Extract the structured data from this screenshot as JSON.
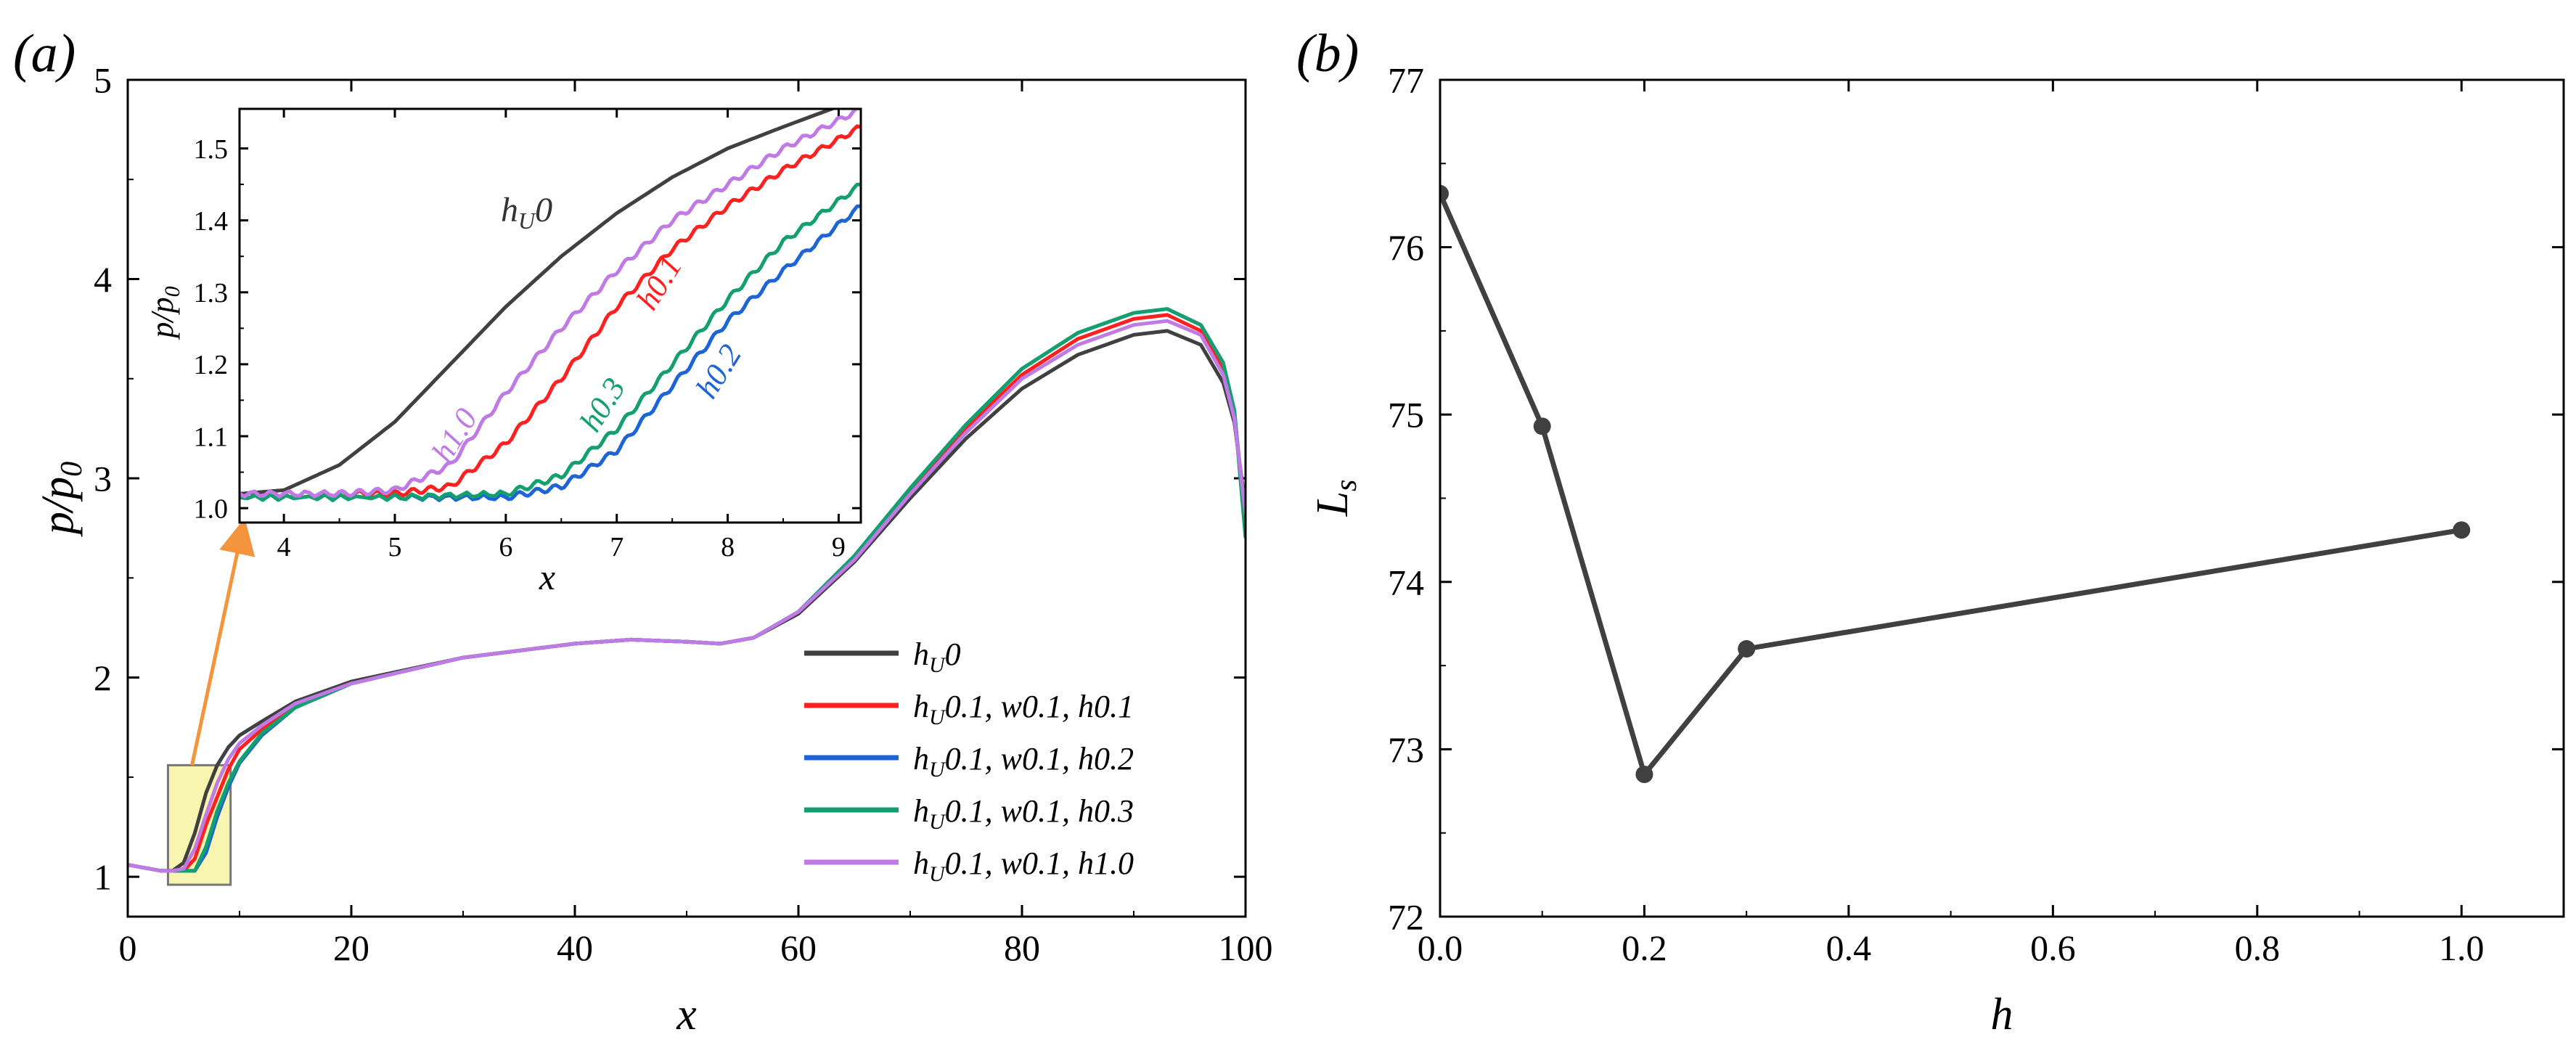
{
  "panel_a_label": "(a)",
  "panel_b_label": "(b)",
  "colors": {
    "series": [
      "#404040",
      "#ff2020",
      "#1c64d8",
      "#14a06e",
      "#c07ae6"
    ],
    "box_fill": "#f7f5b0",
    "arrow": "#f4943c",
    "axis": "#000000"
  },
  "chart_data": [
    {
      "id": "a",
      "type": "line",
      "xlabel": "x",
      "ylabel": "p/p0",
      "xlim": [
        0,
        100
      ],
      "ylim": [
        0.8,
        5.0
      ],
      "xticks": [
        "0",
        "20",
        "40",
        "60",
        "80",
        "100"
      ],
      "yticks": [
        "1",
        "2",
        "3",
        "4",
        "5"
      ],
      "legend": {
        "position": "lower-right",
        "entries": [
          "hU0",
          "hU0.1, w0.1, h0.1",
          "hU0.1, w0.1, h0.2",
          "hU0.1, w0.1, h0.3",
          "hU0.1, w0.1, h1.0"
        ]
      },
      "series": [
        {
          "name": "hU0",
          "x": [
            0,
            3,
            4,
            5,
            6,
            7,
            8,
            9,
            10,
            12,
            15,
            20,
            30,
            40,
            45,
            50,
            53,
            56,
            60,
            65,
            70,
            75,
            80,
            85,
            90,
            93,
            96,
            98,
            99,
            100
          ],
          "y": [
            1.06,
            1.03,
            1.03,
            1.07,
            1.22,
            1.42,
            1.56,
            1.65,
            1.71,
            1.78,
            1.88,
            1.98,
            2.1,
            2.17,
            2.19,
            2.18,
            2.17,
            2.2,
            2.32,
            2.58,
            2.9,
            3.2,
            3.45,
            3.62,
            3.72,
            3.74,
            3.67,
            3.48,
            3.28,
            2.85
          ]
        },
        {
          "name": "hU0.1, w0.1, h0.1",
          "x": [
            0,
            3,
            4,
            5,
            6,
            7,
            8,
            9,
            10,
            12,
            15,
            20,
            30,
            40,
            45,
            50,
            53,
            56,
            60,
            65,
            70,
            75,
            80,
            85,
            90,
            93,
            96,
            98,
            99,
            100
          ],
          "y": [
            1.06,
            1.03,
            1.03,
            1.03,
            1.09,
            1.26,
            1.4,
            1.54,
            1.64,
            1.74,
            1.86,
            1.97,
            2.1,
            2.17,
            2.19,
            2.18,
            2.17,
            2.2,
            2.33,
            2.6,
            2.94,
            3.25,
            3.52,
            3.7,
            3.8,
            3.82,
            3.74,
            3.55,
            3.32,
            2.8
          ]
        },
        {
          "name": "hU0.1, w0.1, h0.2",
          "x": [
            0,
            3,
            4,
            5,
            6,
            7,
            8,
            9,
            10,
            12,
            15,
            20,
            30,
            40,
            45,
            50,
            53,
            56,
            60,
            65,
            70,
            75,
            80,
            85,
            90,
            93,
            96,
            98,
            99,
            100
          ],
          "y": [
            1.06,
            1.03,
            1.03,
            1.03,
            1.03,
            1.12,
            1.3,
            1.45,
            1.57,
            1.71,
            1.85,
            1.97,
            2.1,
            2.17,
            2.19,
            2.18,
            2.17,
            2.2,
            2.33,
            2.61,
            2.95,
            3.27,
            3.55,
            3.73,
            3.83,
            3.85,
            3.77,
            3.58,
            3.34,
            2.75
          ]
        },
        {
          "name": "hU0.1, w0.1, h0.3",
          "x": [
            0,
            3,
            4,
            5,
            6,
            7,
            8,
            9,
            10,
            12,
            15,
            20,
            30,
            40,
            45,
            50,
            53,
            56,
            60,
            65,
            70,
            75,
            80,
            85,
            90,
            93,
            96,
            98,
            99,
            100
          ],
          "y": [
            1.06,
            1.03,
            1.03,
            1.03,
            1.03,
            1.15,
            1.33,
            1.47,
            1.58,
            1.72,
            1.85,
            1.97,
            2.1,
            2.17,
            2.19,
            2.18,
            2.17,
            2.2,
            2.33,
            2.61,
            2.95,
            3.27,
            3.55,
            3.73,
            3.83,
            3.85,
            3.77,
            3.58,
            3.34,
            2.7
          ]
        },
        {
          "name": "hU0.1, w0.1, h1.0",
          "x": [
            0,
            3,
            4,
            5,
            6,
            7,
            8,
            9,
            10,
            12,
            15,
            20,
            30,
            40,
            45,
            50,
            53,
            56,
            60,
            65,
            70,
            75,
            80,
            85,
            90,
            93,
            96,
            98,
            99,
            100
          ],
          "y": [
            1.06,
            1.03,
            1.03,
            1.04,
            1.14,
            1.31,
            1.47,
            1.59,
            1.67,
            1.76,
            1.87,
            1.97,
            2.1,
            2.17,
            2.19,
            2.18,
            2.17,
            2.2,
            2.33,
            2.59,
            2.92,
            3.23,
            3.5,
            3.67,
            3.77,
            3.79,
            3.72,
            3.52,
            3.3,
            2.82
          ]
        }
      ],
      "highlight_box": {
        "xlim": [
          3.6,
          9.2
        ],
        "ylim": [
          0.96,
          1.56
        ]
      }
    },
    {
      "id": "a-inset",
      "type": "line",
      "xlabel": "x",
      "ylabel": "p/p0",
      "xlim": [
        3.6,
        9.2
      ],
      "ylim": [
        0.98,
        1.555
      ],
      "xticks": [
        "4",
        "5",
        "6",
        "7",
        "8",
        "9"
      ],
      "yticks": [
        "1.0",
        "1.1",
        "1.2",
        "1.3",
        "1.4",
        "1.5"
      ],
      "annotations": [
        "hU0",
        "h0.1",
        "h0.2",
        "h0.3",
        "h1.0"
      ],
      "series": [
        {
          "name": "hU0",
          "x": [
            3.6,
            4.0,
            4.5,
            5.0,
            5.5,
            6.0,
            6.5,
            7.0,
            7.5,
            8.0,
            8.5,
            9.2
          ],
          "y": [
            1.02,
            1.025,
            1.06,
            1.12,
            1.2,
            1.28,
            1.35,
            1.41,
            1.46,
            1.5,
            1.53,
            1.57
          ]
        },
        {
          "name": "h0.1",
          "x": [
            3.6,
            4.5,
            5.0,
            5.5,
            6.0,
            6.5,
            7.0,
            7.5,
            8.0,
            8.5,
            9.2
          ],
          "y": [
            1.02,
            1.02,
            1.02,
            1.03,
            1.09,
            1.18,
            1.28,
            1.36,
            1.42,
            1.47,
            1.53
          ]
        },
        {
          "name": "h0.2",
          "x": [
            3.6,
            5.0,
            6.0,
            6.5,
            7.0,
            7.5,
            8.0,
            8.5,
            9.2
          ],
          "y": [
            1.015,
            1.015,
            1.015,
            1.03,
            1.08,
            1.17,
            1.26,
            1.33,
            1.42
          ]
        },
        {
          "name": "h0.3",
          "x": [
            3.6,
            5.0,
            6.0,
            6.5,
            7.0,
            7.5,
            8.0,
            8.5,
            9.2
          ],
          "y": [
            1.015,
            1.015,
            1.02,
            1.045,
            1.11,
            1.2,
            1.29,
            1.37,
            1.45
          ]
        },
        {
          "name": "h1.0",
          "x": [
            3.6,
            4.5,
            5.0,
            5.5,
            6.0,
            6.5,
            7.0,
            7.5,
            8.0,
            8.5,
            9.2
          ],
          "y": [
            1.02,
            1.02,
            1.025,
            1.06,
            1.16,
            1.25,
            1.33,
            1.4,
            1.45,
            1.5,
            1.555
          ]
        }
      ]
    },
    {
      "id": "b",
      "type": "line",
      "xlabel": "h",
      "ylabel": "Ls",
      "xlim": [
        0.0,
        1.1
      ],
      "ylim": [
        72,
        77
      ],
      "xticks": [
        "0.0",
        "0.2",
        "0.4",
        "0.6",
        "0.8",
        "1.0"
      ],
      "yticks": [
        "72",
        "73",
        "74",
        "75",
        "76",
        "77"
      ],
      "series": [
        {
          "name": "Ls",
          "x": [
            0.0,
            0.1,
            0.2,
            0.3,
            1.0
          ],
          "y": [
            76.32,
            74.93,
            72.85,
            73.6,
            74.31
          ]
        }
      ]
    }
  ]
}
